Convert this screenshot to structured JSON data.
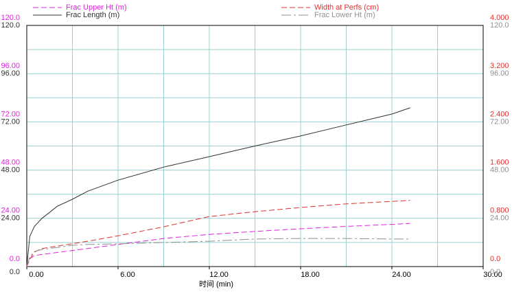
{
  "chart_data": {
    "type": "line",
    "xlabel": "时间 (min)",
    "xlim": [
      0,
      30
    ],
    "xticks": [
      {
        "value": 0,
        "label": "0.00"
      },
      {
        "value": 6,
        "label": "6.00"
      },
      {
        "value": 12,
        "label": "12.00"
      },
      {
        "value": 18,
        "label": "18.00"
      },
      {
        "value": 24,
        "label": "24.00"
      },
      {
        "value": 30,
        "label": "30.00"
      }
    ],
    "xgrid": [
      3,
      6,
      9,
      12,
      15,
      18,
      21,
      24,
      27
    ],
    "ygrid": [
      12,
      24,
      36,
      48,
      60,
      72,
      84,
      96,
      108
    ],
    "grid_color": "#9ccfcf",
    "x": [
      0,
      0.2,
      0.5,
      1,
      2,
      3,
      4,
      6,
      9,
      12,
      15,
      18,
      21,
      24,
      25.2
    ],
    "series": [
      {
        "name": "Frac Upper Ht (m)",
        "color": "#e020e0",
        "dash": "8 4",
        "side": "left",
        "slot": "upper",
        "ylim": [
          0,
          120
        ],
        "yticks": [
          {
            "value": 0,
            "label": "0.0"
          },
          {
            "value": 24,
            "label": "24.00"
          },
          {
            "value": 48,
            "label": "48.00"
          },
          {
            "value": 72,
            "label": "72.00"
          },
          {
            "value": 96,
            "label": "96.00"
          },
          {
            "value": 120,
            "label": "120.0"
          }
        ],
        "values": [
          0,
          4,
          5.5,
          6,
          7,
          8,
          9,
          11,
          14,
          16,
          17.5,
          18.8,
          20,
          21,
          21.5
        ]
      },
      {
        "name": "Frac Length (m)",
        "color": "#303030",
        "dash": "none",
        "side": "left",
        "slot": "lower",
        "ylim": [
          0,
          120
        ],
        "yticks": [
          {
            "value": 0,
            "label": "0.0"
          },
          {
            "value": 24,
            "label": "24.00"
          },
          {
            "value": 48,
            "label": "48.00"
          },
          {
            "value": 72,
            "label": "72.00"
          },
          {
            "value": 96,
            "label": "96.00"
          },
          {
            "value": 120,
            "label": "120.0"
          }
        ],
        "values": [
          0,
          15,
          20,
          24,
          30,
          33.5,
          37.5,
          43,
          49.5,
          54.7,
          60,
          65,
          70.5,
          75.9,
          79
        ]
      },
      {
        "name": "Width at Perfs (cm)",
        "color": "#e03030",
        "dash": "8 4",
        "side": "right",
        "slot": "upper",
        "ylim": [
          0,
          4
        ],
        "yticks": [
          {
            "value": 0,
            "label": "0.0"
          },
          {
            "value": 0.8,
            "label": "0.800"
          },
          {
            "value": 1.6,
            "label": "1.600"
          },
          {
            "value": 2.4,
            "label": "2.400"
          },
          {
            "value": 3.2,
            "label": "3.200"
          },
          {
            "value": 4,
            "label": "4.000"
          }
        ],
        "values": [
          0,
          0.12,
          0.24,
          0.3,
          0.34,
          0.38,
          0.42,
          0.51,
          0.66,
          0.83,
          0.91,
          0.98,
          1.04,
          1.08,
          1.1
        ]
      },
      {
        "name": "Frac Lower Ht (m)",
        "color": "#909090",
        "dash": "14 4 3 4",
        "side": "right",
        "slot": "lower",
        "ylim": [
          0,
          120
        ],
        "yticks": [
          {
            "value": 0,
            "label": "0.0"
          },
          {
            "value": 24,
            "label": "24.00"
          },
          {
            "value": 48,
            "label": "48.00"
          },
          {
            "value": 72,
            "label": "72.00"
          },
          {
            "value": 96,
            "label": "96.00"
          },
          {
            "value": 120,
            "label": "120.0"
          }
        ],
        "values": [
          0,
          5,
          7.5,
          8.5,
          9.5,
          10.6,
          11,
          11.3,
          12,
          12.6,
          13.7,
          14,
          14,
          13.7,
          13.7
        ]
      }
    ]
  }
}
